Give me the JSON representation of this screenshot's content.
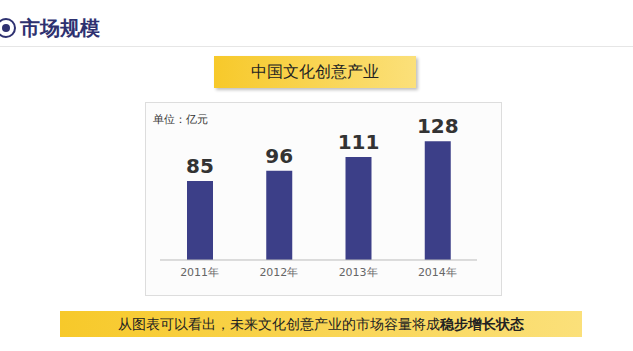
{
  "header": {
    "title": "市场规模"
  },
  "chart_data": {
    "type": "bar",
    "title": "中国文化创意产业",
    "subtitle": "单位：亿元",
    "categories": [
      "2011年",
      "2012年",
      "2013年",
      "2014年"
    ],
    "values": [
      85,
      96,
      111,
      128
    ],
    "color": "#3c3f88",
    "ylim": [
      0,
      140
    ],
    "data_labels": true,
    "tick_labels": "x",
    "grid": false
  },
  "note": {
    "text": "从图表可以看出，未来文化创意产业的市场容量将成",
    "emphasis": "稳步增长状态"
  }
}
